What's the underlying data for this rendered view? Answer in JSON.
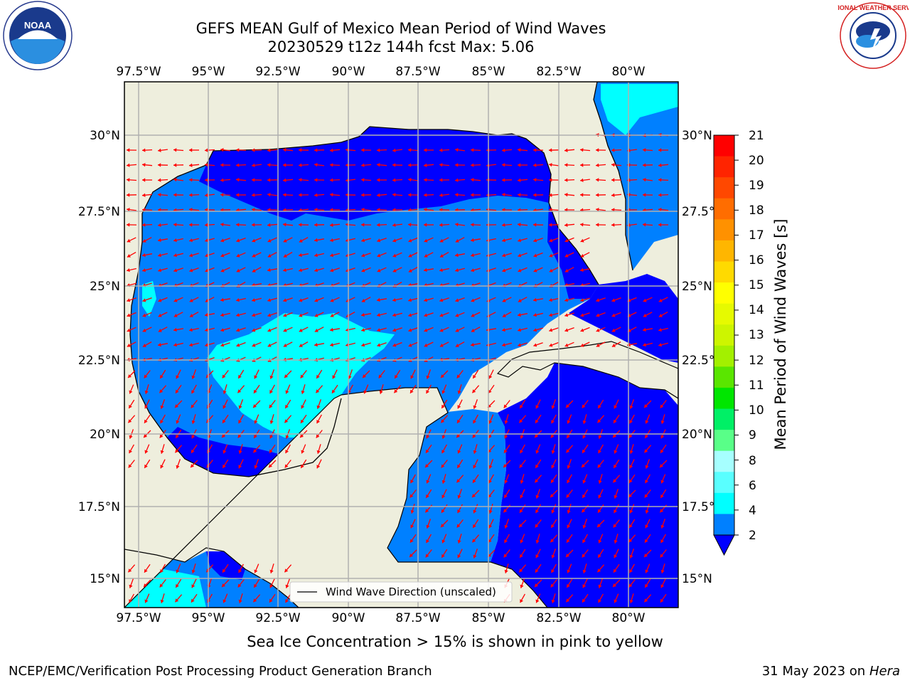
{
  "header": {
    "title_line1": "GEFS MEAN Gulf of Mexico Mean Period of Wind Waves",
    "title_line2": "20230529 t12z 144h fcst   Max: 5.06"
  },
  "map": {
    "lon_ticks": [
      "97.5°W",
      "95°W",
      "92.5°W",
      "90°W",
      "87.5°W",
      "85°W",
      "82.5°W",
      "80°W"
    ],
    "lat_ticks_left": [
      "30°N",
      "27.5°N",
      "25°N",
      "22.5°N",
      "20°N",
      "17.5°N",
      "15°N"
    ],
    "lat_ticks_right": [
      "30°N",
      "27.5°",
      "25°N",
      "22.5°",
      "20°N",
      "17.5°",
      "15°N"
    ],
    "legend_label": "Wind Wave Direction (unscaled)",
    "colors": {
      "land": "#eeeedd",
      "ocean_dark": "#0000ff",
      "ocean_mid": "#0080ff",
      "ocean_light": "#00ffff",
      "arrow": "#ff0000",
      "grid": "#b0b0b0"
    }
  },
  "colorbar": {
    "label": "Mean Period of Wind Waves [s]",
    "ticks": [
      "21",
      "20",
      "19",
      "18",
      "17",
      "16",
      "15",
      "14",
      "13",
      "12",
      "11",
      "10",
      "9",
      "8",
      "6",
      "4",
      "2"
    ],
    "colors": [
      "#ff0000",
      "#ff2400",
      "#ff4800",
      "#ff6d00",
      "#ff9100",
      "#ffb600",
      "#ffda00",
      "#ffff00",
      "#e6fa00",
      "#cdf500",
      "#a3f000",
      "#5ae600",
      "#00e600",
      "#00f066",
      "#59ff88",
      "#a6ffff",
      "#59ffff",
      "#00ffff",
      "#0080ff"
    ],
    "extend_color": "#0000ff"
  },
  "caption": "Sea Ice Concentration > 15% is shown in pink to yellow",
  "footer": {
    "left": "NCEP/EMC/Verification Post Processing Product Generation Branch",
    "right_date": "31 May 2023 on",
    "right_machine": "Hera"
  },
  "logos": {
    "noaa": "NOAA",
    "nws": "NATIONAL WEATHER SERVICE"
  }
}
